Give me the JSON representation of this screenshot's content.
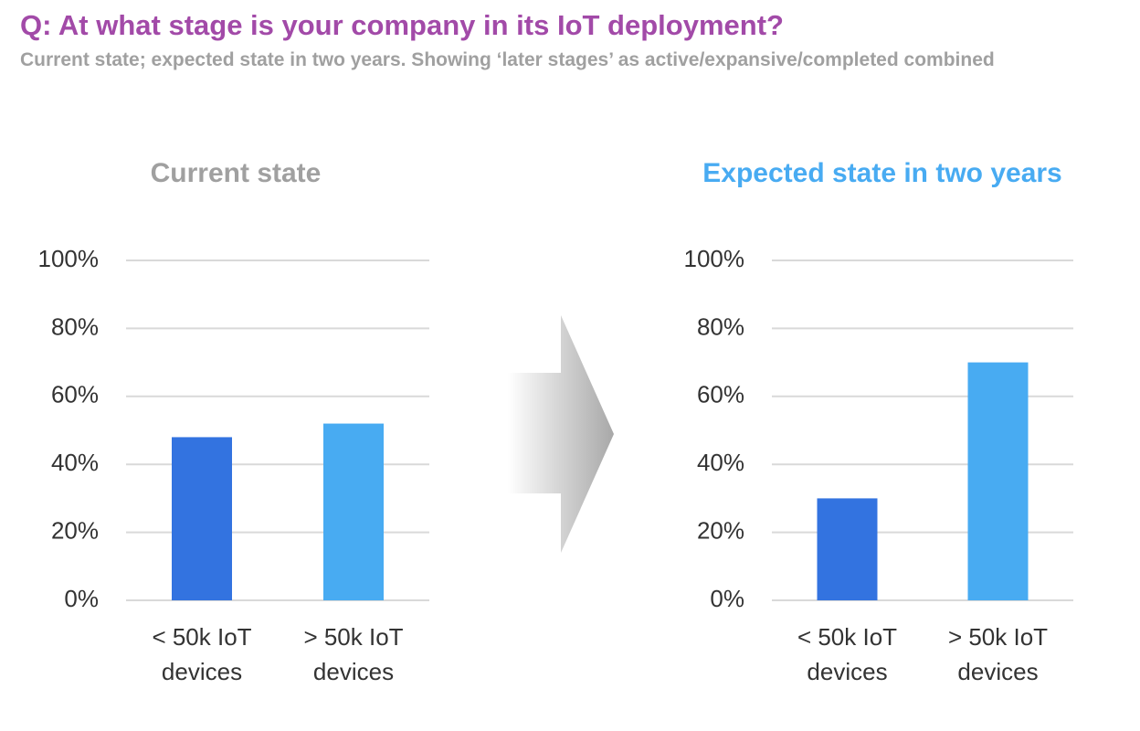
{
  "header": {
    "title": "Q: At what stage is your company in its IoT deployment?",
    "subtitle": "Current state; expected state in two years. Showing ‘later stages’ as active/expansive/completed combined"
  },
  "chart_data": [
    {
      "type": "bar",
      "title": "Current state",
      "title_color": "#a0a0a0",
      "categories": [
        "< 50k IoT devices",
        "> 50k IoT devices"
      ],
      "values": [
        48,
        52
      ],
      "colors": [
        "#3373e0",
        "#48abf2"
      ],
      "ylim": [
        0,
        100
      ],
      "yticks": [
        {
          "value": 0,
          "label": "0%"
        },
        {
          "value": 20,
          "label": "20%"
        },
        {
          "value": 40,
          "label": "40%"
        },
        {
          "value": 60,
          "label": "60%"
        },
        {
          "value": 80,
          "label": "80%"
        },
        {
          "value": 100,
          "label": "100%"
        }
      ],
      "grid": true
    },
    {
      "type": "bar",
      "title": "Expected state in two years",
      "title_color": "#48abf2",
      "categories": [
        "< 50k IoT devices",
        "> 50k IoT devices"
      ],
      "values": [
        30,
        70
      ],
      "colors": [
        "#3373e0",
        "#48abf2"
      ],
      "ylim": [
        0,
        100
      ],
      "yticks": [
        {
          "value": 0,
          "label": "0%"
        },
        {
          "value": 20,
          "label": "20%"
        },
        {
          "value": 40,
          "label": "40%"
        },
        {
          "value": 60,
          "label": "60%"
        },
        {
          "value": 80,
          "label": "80%"
        },
        {
          "value": 100,
          "label": "100%"
        }
      ],
      "grid": true
    }
  ]
}
